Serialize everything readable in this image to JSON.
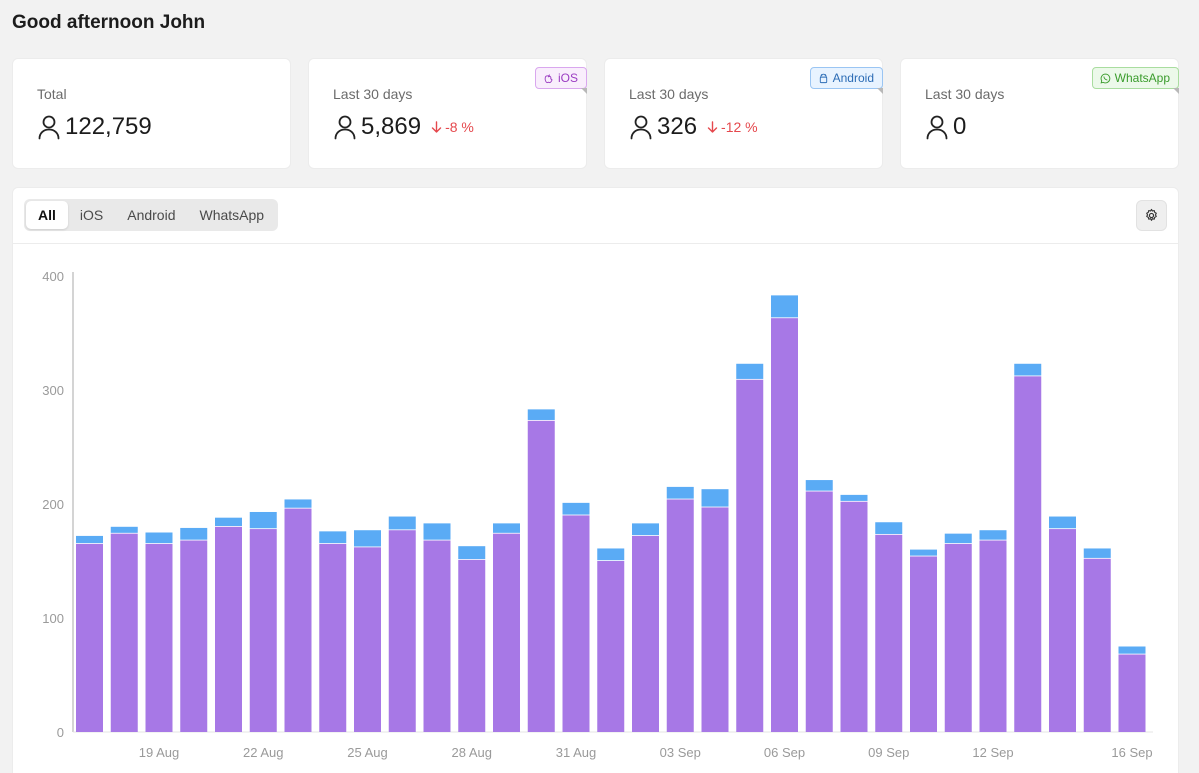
{
  "greeting": "Good afternoon John",
  "cards": [
    {
      "label": "Total",
      "value": "122,759",
      "delta": "",
      "badge": ""
    },
    {
      "label": "Last 30 days",
      "value": "5,869",
      "delta": "-8 %",
      "badge": "iOS"
    },
    {
      "label": "Last 30 days",
      "value": "326",
      "delta": "-12 %",
      "badge": "Android"
    },
    {
      "label": "Last 30 days",
      "value": "0",
      "delta": "",
      "badge": "WhatsApp"
    }
  ],
  "icons": {
    "user": "user-icon",
    "down": "arrow-down-icon",
    "ios": "apple-icon",
    "android": "android-icon",
    "whatsapp": "whatsapp-icon",
    "settings": "gear-icon"
  },
  "colors": {
    "purple": "#a778e6",
    "blue": "#5aabf5",
    "negative": "#e5484d"
  },
  "tabs": [
    "All",
    "iOS",
    "Android",
    "WhatsApp"
  ],
  "active_tab": "All",
  "chart_data": {
    "type": "bar",
    "stacked": true,
    "ylim": [
      0,
      400
    ],
    "yticks": [
      0,
      100,
      200,
      300,
      400
    ],
    "xtick_labels": [
      "19 Aug",
      "22 Aug",
      "25 Aug",
      "28 Aug",
      "31 Aug",
      "03 Sep",
      "06 Sep",
      "09 Sep",
      "12 Sep",
      "16 Sep"
    ],
    "xtick_positions": [
      2,
      5,
      8,
      11,
      14,
      17,
      20,
      23,
      26,
      30
    ],
    "series": [
      {
        "color": "#a778e6",
        "values": [
          165,
          174,
          165,
          168,
          180,
          178,
          196,
          165,
          162,
          177,
          168,
          151,
          174,
          273,
          190,
          150,
          172,
          204,
          197,
          309,
          363,
          211,
          202,
          173,
          154,
          165,
          168,
          312,
          178,
          152,
          68
        ]
      },
      {
        "color": "#5aabf5",
        "values": [
          7,
          6,
          10,
          11,
          8,
          15,
          8,
          11,
          15,
          12,
          15,
          12,
          9,
          10,
          11,
          11,
          11,
          11,
          16,
          14,
          20,
          10,
          6,
          11,
          6,
          9,
          9,
          11,
          11,
          9,
          7
        ]
      }
    ]
  }
}
